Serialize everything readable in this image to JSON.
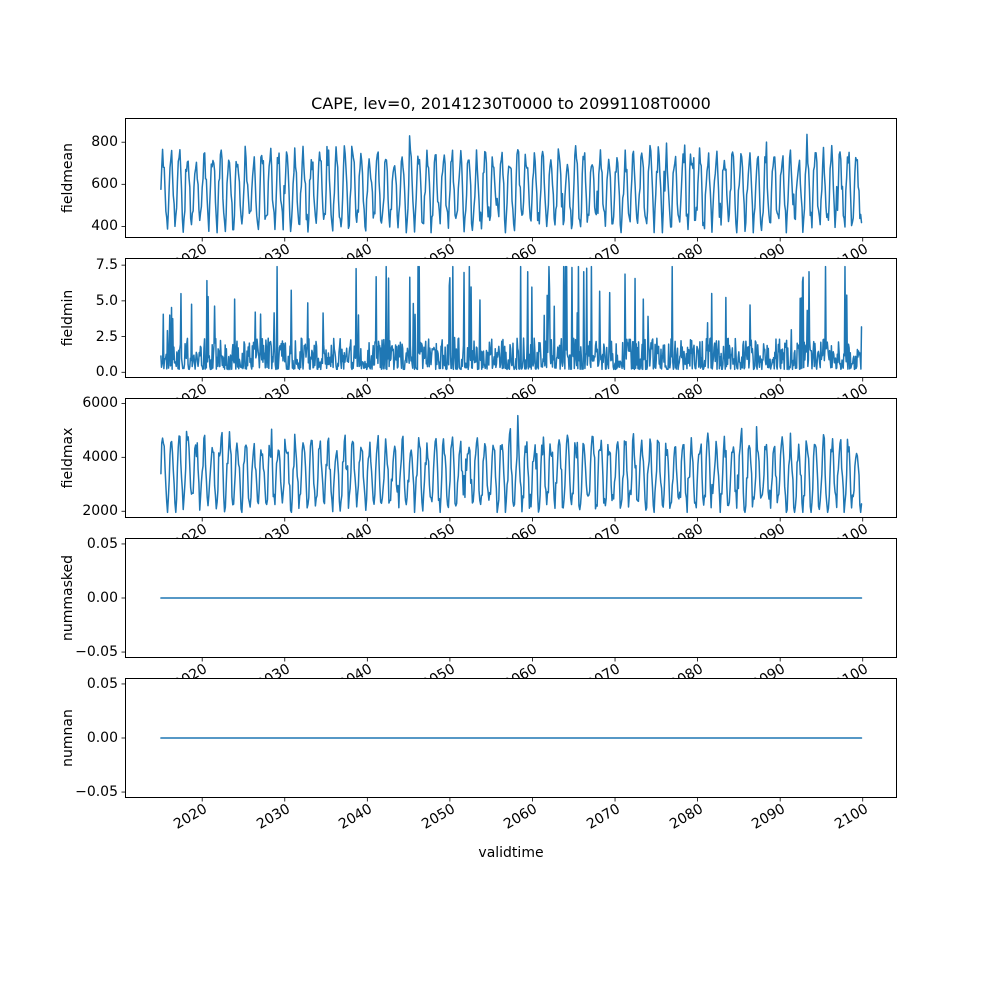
{
  "figure": {
    "title": "CAPE, lev=0, 20141230T0000 to 20991108T0000",
    "xlabel": "validtime",
    "background": "#ffffff",
    "text_color": "#000000"
  },
  "chart_data": {
    "type": "line",
    "title": "CAPE, lev=0, 20141230T0000 to 20991108T0000",
    "xlabel": "validtime",
    "line_color": "#1f77b4",
    "grid": false,
    "legend": "none",
    "x_start": 2015.0,
    "x_end": 2099.85,
    "xlim": [
      2010.65,
      2104.15
    ],
    "x_ticks": [
      2020,
      2030,
      2040,
      2050,
      2060,
      2070,
      2080,
      2090,
      2100
    ],
    "x_tick_rotation_deg": 30,
    "subplots": [
      {
        "ylabel": "fieldmean",
        "ylim": [
          345,
          915
        ],
        "yticks": [
          {
            "v": 400,
            "label": "400"
          },
          {
            "v": 600,
            "label": "600"
          },
          {
            "v": 800,
            "label": "800"
          }
        ],
        "pattern": "seasonal",
        "base": 575,
        "amplitude": 160,
        "noise": 55,
        "peak_prob": 0.05,
        "peak_extra": 150,
        "clip": [
          370,
          905
        ],
        "points_per_year": 10,
        "seed": 11
      },
      {
        "ylabel": "fieldmin",
        "ylim": [
          -0.4,
          8.0
        ],
        "yticks": [
          {
            "v": 0,
            "label": "0.0"
          },
          {
            "v": 2.5,
            "label": "2.5"
          },
          {
            "v": 5,
            "label": "5.0"
          },
          {
            "v": 7.5,
            "label": "7.5"
          }
        ],
        "pattern": "spiky",
        "floor": 0.2,
        "typ": 2.2,
        "spike_prob": 0.05,
        "spike_min": 2.0,
        "spike_span": 5.3,
        "clip": [
          0.03,
          7.4
        ],
        "points_per_year": 14,
        "seed": 22
      },
      {
        "ylabel": "fieldmax",
        "ylim": [
          1750,
          6200
        ],
        "yticks": [
          {
            "v": 2000,
            "label": "2000"
          },
          {
            "v": 4000,
            "label": "4000"
          },
          {
            "v": 6000,
            "label": "6000"
          }
        ],
        "pattern": "seasonal",
        "base": 3350,
        "amplitude": 1150,
        "noise": 420,
        "peak_prob": 0.06,
        "peak_extra": 900,
        "clip": [
          1960,
          5950
        ],
        "points_per_year": 10,
        "seed": 33
      },
      {
        "ylabel": "nummasked",
        "ylim": [
          -0.0555,
          0.0555
        ],
        "yticks": [
          {
            "v": -0.05,
            "label": "−0.05"
          },
          {
            "v": 0,
            "label": "0.00"
          },
          {
            "v": 0.05,
            "label": "0.05"
          }
        ],
        "pattern": "flat",
        "value": 0,
        "seed": 44
      },
      {
        "ylabel": "numnan",
        "ylim": [
          -0.0555,
          0.0555
        ],
        "yticks": [
          {
            "v": -0.05,
            "label": "−0.05"
          },
          {
            "v": 0,
            "label": "0.00"
          },
          {
            "v": 0.05,
            "label": "0.05"
          }
        ],
        "pattern": "flat",
        "value": 0,
        "seed": 55
      }
    ]
  }
}
